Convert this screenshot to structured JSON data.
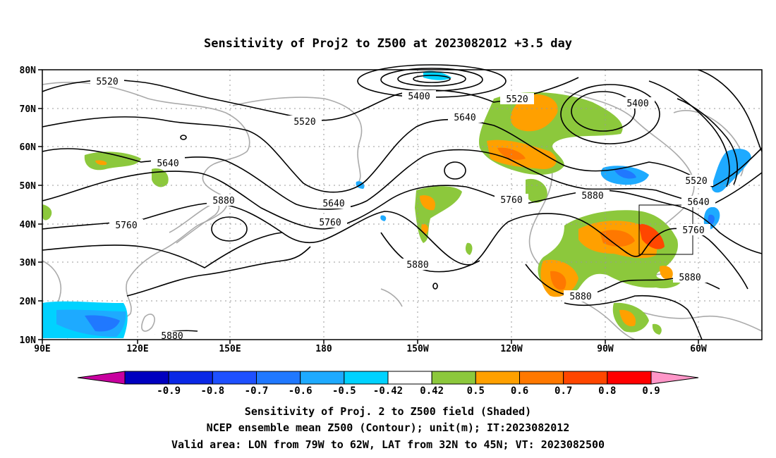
{
  "title": "Sensitivity of Proj2 to Z500 at 2023082012 +3.5 day",
  "lon_labels": [
    "90E",
    "120E",
    "150E",
    "180",
    "150W",
    "120W",
    "90W",
    "60W"
  ],
  "lat_labels": [
    "80N",
    "70N",
    "60N",
    "50N",
    "40N",
    "30N",
    "20N",
    "10N"
  ],
  "contour_labels": {
    "c1": "5520",
    "c2": "5400",
    "c3": "5520",
    "c4": "5520",
    "c5": "5640",
    "c6": "5400",
    "c7": "5640",
    "c8": "5880",
    "c9": "5760",
    "c10": "5640",
    "c11": "5760",
    "c12": "5760",
    "c13": "5880",
    "c14": "5520",
    "c15": "5640",
    "c16": "5760",
    "c17": "5880",
    "c18": "5880",
    "c19": "5880"
  },
  "colorbar": {
    "colors": [
      "#c8009f",
      "#0000bf",
      "#0a28e6",
      "#1e50ff",
      "#2078ff",
      "#1eaaff",
      "#00d2ff",
      "#ffffff",
      "#8cc83c",
      "#ffa000",
      "#ff7800",
      "#ff4600",
      "#ff0000",
      "#ff96c8"
    ],
    "labels": [
      "-0.9",
      "-0.8",
      "-0.7",
      "-0.6",
      "-0.5",
      "-0.42",
      "0.42",
      "0.5",
      "0.6",
      "0.7",
      "0.8",
      "0.9"
    ]
  },
  "caption": {
    "line1": "Sensitivity of Proj. 2 to Z500 field (Shaded)",
    "line2": "NCEP ensemble mean Z500 (Contour); unit(m); IT:2023082012",
    "line3": "Valid area: LON from 79W to 62W, LAT from 32N to 45N; VT: 2023082500"
  }
}
